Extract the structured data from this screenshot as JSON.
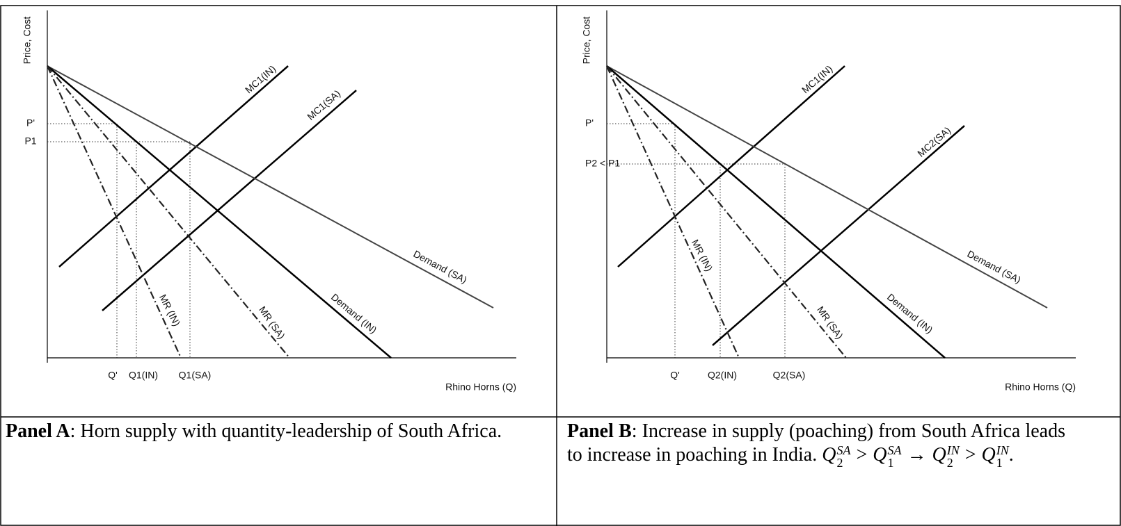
{
  "panels": [
    {
      "y_label": "Price, Cost",
      "x_label": "Rhino Horns (Q)",
      "line_labels": [
        "MC1(IN)",
        "MC1(SA)",
        "Demand (SA)",
        "Demand (IN)",
        "MR (SA)",
        "MR (IN)"
      ],
      "price_labels": [
        "P'",
        "P1"
      ],
      "quantity_labels": [
        "Q'",
        "Q1(IN)",
        "Q1(SA)"
      ],
      "caption": {
        "bold": "Panel A",
        "text": ": Horn supply with quantity-leadership of South Africa.",
        "math": []
      }
    },
    {
      "y_label": "Price, Cost",
      "x_label": "Rhino Horns (Q)",
      "line_labels": [
        "MC1(IN)",
        "MC2(SA)",
        "Demand (SA)",
        "Demand (IN)",
        "MR (SA)",
        "MR (IN)"
      ],
      "price_labels": [
        "P'",
        "P2 < P1"
      ],
      "quantity_labels": [
        "Q'",
        "Q2(IN)",
        "Q2(SA)"
      ],
      "caption": {
        "bold": "Panel B",
        "text": ": Increase in supply (poaching) from South Africa leads to increase in poaching in India. ",
        "math": [
          {
            "base": "Q",
            "sub": "2",
            "sup": "SA"
          },
          {
            "op": ">"
          },
          {
            "base": "Q",
            "sub": "1",
            "sup": "SA"
          },
          {
            "op": "→"
          },
          {
            "base": "Q",
            "sub": "2",
            "sup": "IN"
          },
          {
            "op": ">"
          },
          {
            "base": "Q",
            "sub": "1",
            "sup": "IN"
          },
          {
            "op": "."
          }
        ]
      }
    }
  ]
}
